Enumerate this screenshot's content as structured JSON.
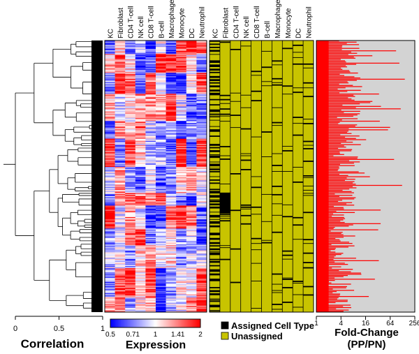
{
  "chart_data": [
    {
      "type": "dendrogram",
      "name": "Gene clustering dendrogram",
      "xlabel": "Correlation",
      "xticks": [
        "0",
        "0.5",
        "1"
      ],
      "xlim": [
        0,
        1
      ]
    },
    {
      "type": "heatmap",
      "name": "Expression heatmap",
      "columns": [
        "KC",
        "Fibroblast",
        "CD4 T-cell",
        "NK cell",
        "CD8 T-cell",
        "B-cell",
        "Macrophage",
        "Monocyte",
        "DC",
        "Neutrophil"
      ],
      "colorbar": {
        "title": "Expression",
        "ticks": [
          "0.5",
          "0.71",
          "1",
          "1.41",
          "2"
        ],
        "range": [
          0.5,
          2
        ],
        "colors": [
          "#0000ff",
          "#ffffff",
          "#ff0000"
        ]
      }
    },
    {
      "type": "heatmap",
      "name": "Cell type assignment",
      "columns": [
        "KC",
        "Fibroblast",
        "CD4 T-cell",
        "NK cell",
        "CD8 T-cell",
        "B-cell",
        "Macrophage",
        "Monocyte",
        "DC",
        "Neutrophil"
      ],
      "legend": [
        {
          "label": "Assigned Cell Type",
          "color": "#000000"
        },
        {
          "label": "Unassigned",
          "color": "#c8c400"
        }
      ]
    },
    {
      "type": "bar",
      "orientation": "horizontal",
      "name": "Fold change bars",
      "xlabel": "Fold-Change",
      "xlabel2": "(PP/PN)",
      "xticks": [
        "1",
        "4",
        "16",
        "64",
        "256"
      ],
      "xscale": "log2",
      "xlim": [
        1,
        256
      ],
      "bar_color": "#ff0000",
      "background_color": "#d3d3d3"
    }
  ]
}
